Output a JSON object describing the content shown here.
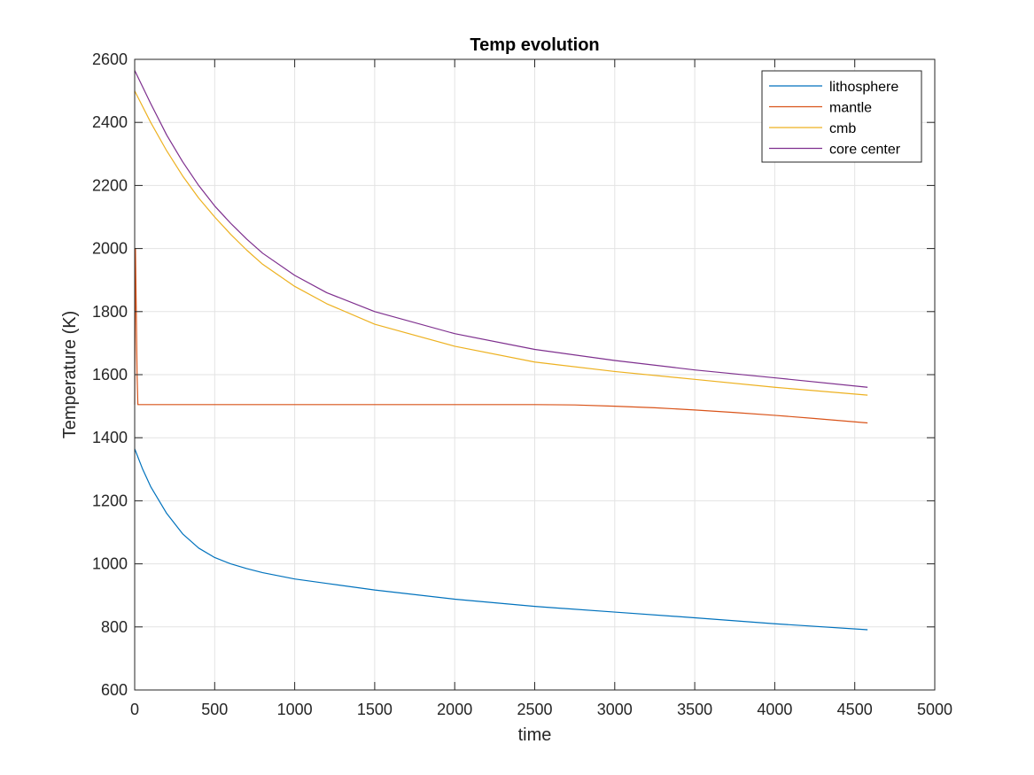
{
  "chart_data": {
    "type": "line",
    "title": "Temp evolution",
    "xlabel": "time",
    "ylabel": "Temperature (K)",
    "xlim": [
      0,
      5000
    ],
    "ylim": [
      600,
      2600
    ],
    "xticks": [
      0,
      500,
      1000,
      1500,
      2000,
      2500,
      3000,
      3500,
      4000,
      4500,
      5000
    ],
    "yticks": [
      600,
      800,
      1000,
      1200,
      1400,
      1600,
      1800,
      2000,
      2200,
      2400,
      2600
    ],
    "xtick_labels": [
      "0",
      "500",
      "1000",
      "1500",
      "2000",
      "2500",
      "3000",
      "3500",
      "4000",
      "4500",
      "5000"
    ],
    "ytick_labels": [
      "600",
      "800",
      "1000",
      "1200",
      "1400",
      "1600",
      "1800",
      "2000",
      "2200",
      "2400",
      "2600"
    ],
    "grid": true,
    "legend_position": "top-right",
    "series": [
      {
        "name": "lithosphere",
        "color": "#0072BD",
        "x": [
          0,
          50,
          100,
          200,
          300,
          400,
          500,
          600,
          700,
          800,
          1000,
          1200,
          1500,
          2000,
          2500,
          3000,
          3500,
          4000,
          4580
        ],
        "y": [
          1365,
          1300,
          1245,
          1160,
          1095,
          1050,
          1020,
          1000,
          985,
          972,
          952,
          938,
          917,
          888,
          865,
          847,
          829,
          810,
          791
        ]
      },
      {
        "name": "mantle",
        "color": "#D95319",
        "x": [
          0,
          5,
          10,
          15,
          20,
          500,
          1000,
          1500,
          2000,
          2500,
          2750,
          3000,
          3250,
          3500,
          3750,
          4000,
          4250,
          4580
        ],
        "y": [
          1505,
          2000,
          1800,
          1600,
          1505,
          1505,
          1505,
          1505,
          1505,
          1505,
          1504,
          1500,
          1495,
          1488,
          1480,
          1471,
          1461,
          1447
        ]
      },
      {
        "name": "cmb",
        "color": "#EDB120",
        "x": [
          0,
          100,
          200,
          300,
          400,
          500,
          600,
          700,
          800,
          1000,
          1200,
          1500,
          2000,
          2500,
          3000,
          3500,
          4000,
          4580
        ],
        "y": [
          2500,
          2400,
          2310,
          2230,
          2160,
          2100,
          2045,
          1995,
          1950,
          1880,
          1825,
          1760,
          1690,
          1640,
          1610,
          1585,
          1560,
          1535
        ]
      },
      {
        "name": "core center",
        "color": "#7E2F8E",
        "x": [
          0,
          100,
          200,
          300,
          400,
          500,
          600,
          700,
          800,
          1000,
          1200,
          1500,
          2000,
          2500,
          3000,
          3500,
          4000,
          4580
        ],
        "y": [
          2565,
          2460,
          2360,
          2275,
          2200,
          2135,
          2080,
          2030,
          1985,
          1915,
          1860,
          1800,
          1730,
          1680,
          1645,
          1615,
          1590,
          1560
        ]
      }
    ]
  }
}
